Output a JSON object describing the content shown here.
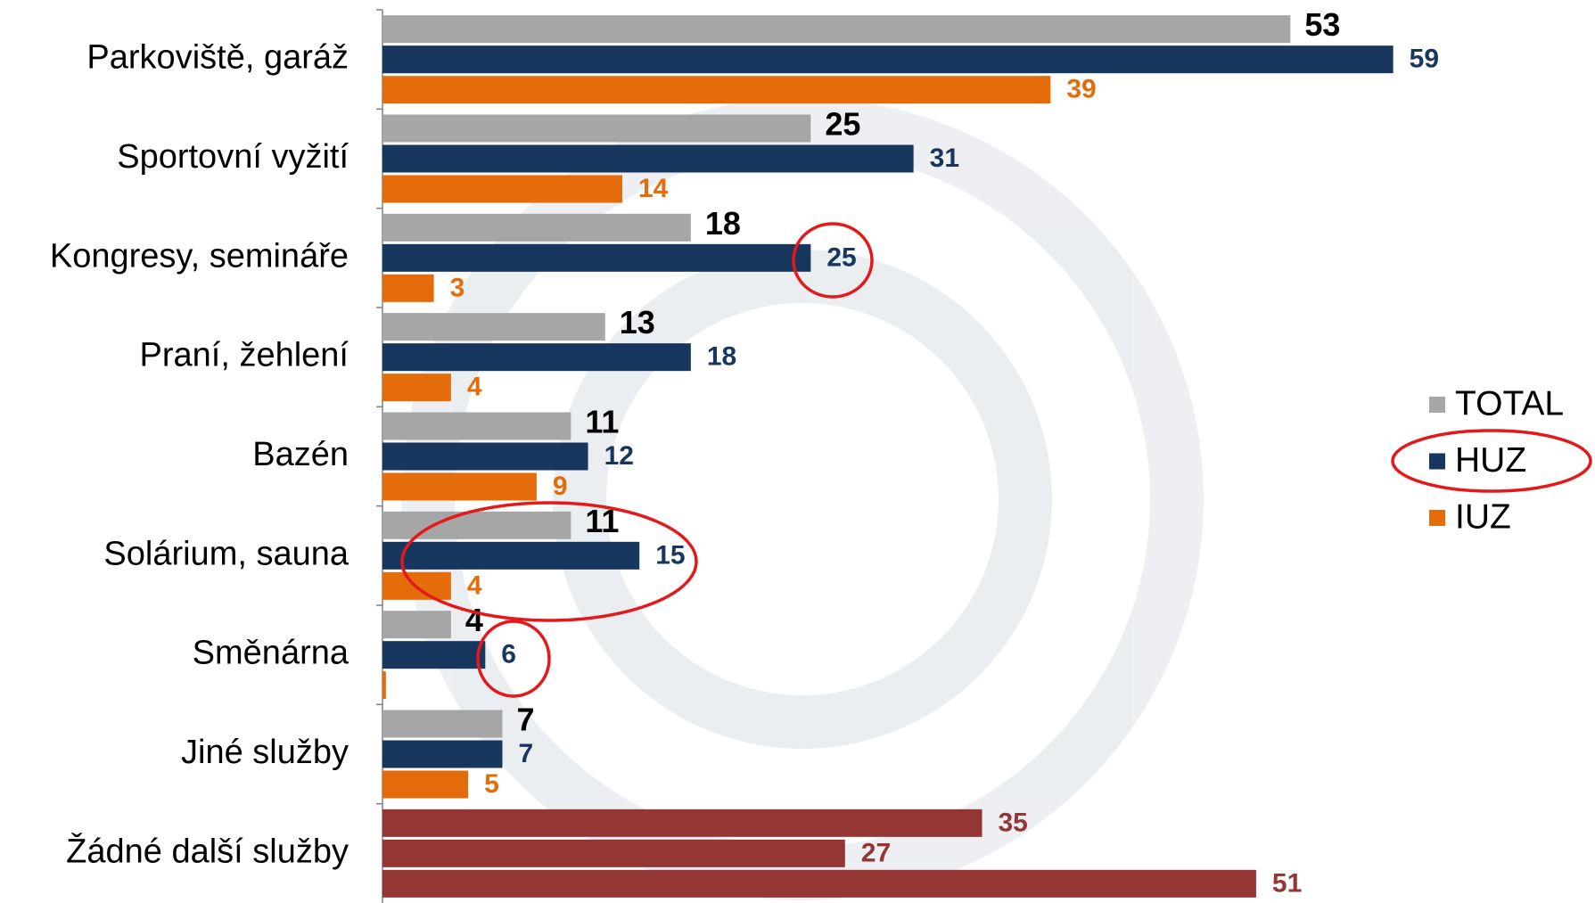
{
  "chart_data": {
    "type": "hbar",
    "categories": [
      "Parkoviště, garáž",
      "Sportovní vyžití",
      "Kongresy, semináře",
      "Praní, žehlení",
      "Bazén",
      "Solárium, sauna",
      "Směnárna",
      "Jiné služby",
      "Žádné další služby"
    ],
    "series": [
      {
        "name": "TOTAL",
        "color": "#a6a6a6",
        "label_color": "#000000",
        "colors": [
          "#a6a6a6",
          "#a6a6a6",
          "#a6a6a6",
          "#a6a6a6",
          "#a6a6a6",
          "#a6a6a6",
          "#a6a6a6",
          "#a6a6a6",
          "#943634"
        ],
        "label_colors": [
          "#000000",
          "#000000",
          "#000000",
          "#000000",
          "#000000",
          "#000000",
          "#000000",
          "#000000",
          "#943634"
        ],
        "values": [
          53,
          25,
          18,
          13,
          11,
          11,
          4,
          7,
          35
        ]
      },
      {
        "name": "HUZ",
        "color": "#17375e",
        "colors": [
          "#17375e",
          "#17375e",
          "#17375e",
          "#17375e",
          "#17375e",
          "#17375e",
          "#17375e",
          "#17375e",
          "#943634"
        ],
        "label_colors": [
          "#17375e",
          "#17375e",
          "#17375e",
          "#17375e",
          "#17375e",
          "#17375e",
          "#17375e",
          "#17375e",
          "#943634"
        ],
        "values": [
          59,
          31,
          25,
          18,
          12,
          15,
          6,
          7,
          27
        ]
      },
      {
        "name": "IUZ",
        "color": "#e46c0a",
        "colors": [
          "#e46c0a",
          "#e46c0a",
          "#e46c0a",
          "#e46c0a",
          "#e46c0a",
          "#e46c0a",
          "#e46c0a",
          "#e46c0a",
          "#943634"
        ],
        "label_colors": [
          "#e46c0a",
          "#e46c0a",
          "#e46c0a",
          "#e46c0a",
          "#e46c0a",
          "#e46c0a",
          "#e46c0a",
          "#e46c0a",
          "#943634"
        ],
        "values": [
          39,
          14,
          3,
          4,
          9,
          4,
          0.2,
          5,
          51
        ],
        "value_labels": [
          "39",
          "14",
          "3",
          "4",
          "9",
          "4",
          null,
          "5",
          "51"
        ]
      }
    ],
    "xlim": [
      0,
      70
    ],
    "legend": "right"
  }
}
